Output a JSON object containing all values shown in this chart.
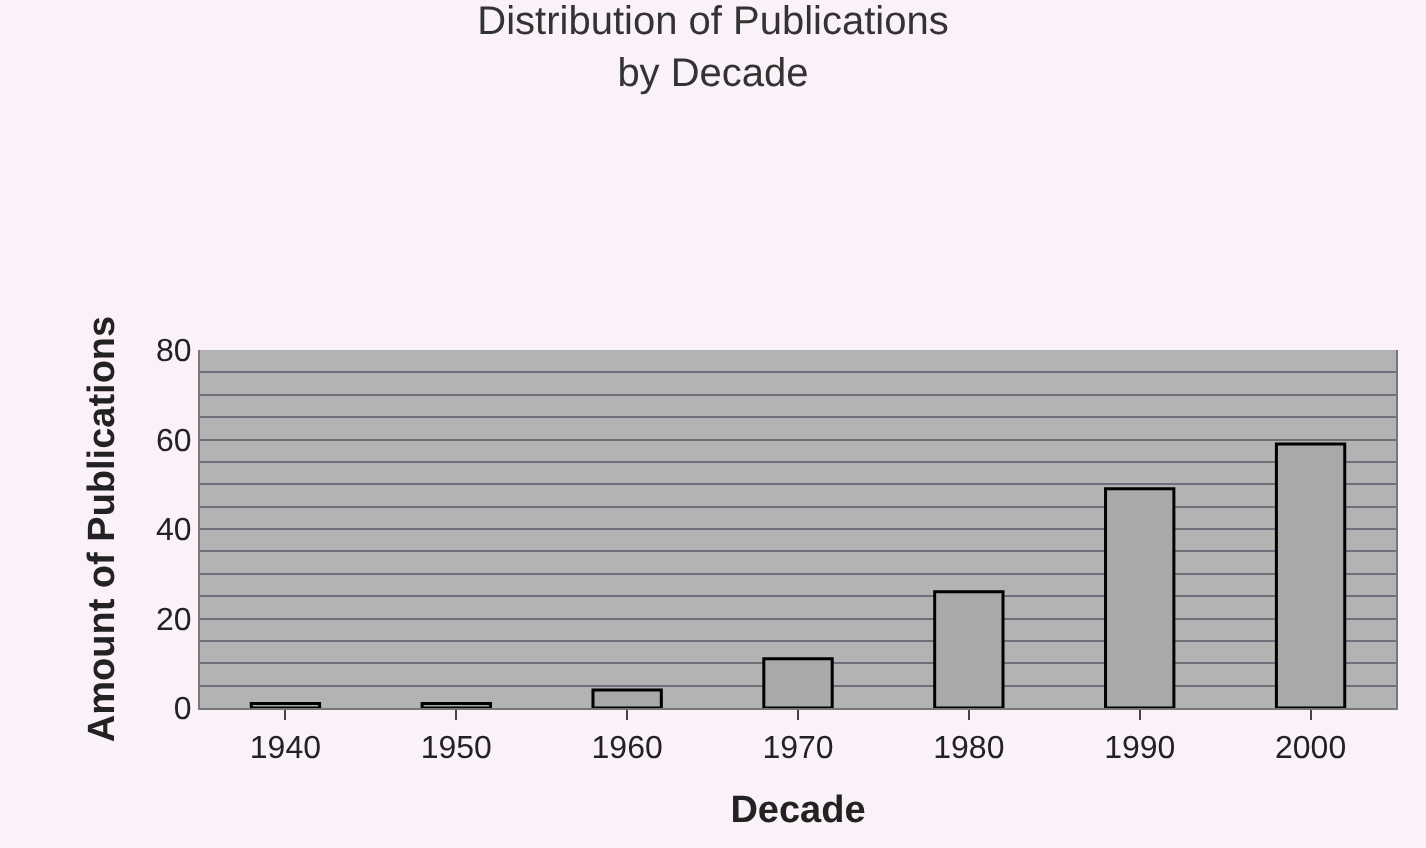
{
  "chart_data": {
    "type": "bar",
    "title": "Distribution of Publications\nby Decade",
    "xlabel": "Decade",
    "ylabel": "Amount of Publications",
    "categories": [
      "1940",
      "1950",
      "1960",
      "1970",
      "1980",
      "1990",
      "2000"
    ],
    "values": [
      1,
      1,
      4,
      11,
      26,
      49,
      59
    ],
    "color": "#a9a9a9",
    "ylim": [
      0,
      80
    ],
    "yticks": [
      0,
      {
        "value": 5,
        "label": null
      },
      {
        "value": 10,
        "label": null
      },
      {
        "value": 15,
        "label": null
      },
      20,
      {
        "value": 25,
        "label": null
      },
      {
        "value": 30,
        "label": null
      },
      {
        "value": 35,
        "label": null
      },
      40,
      {
        "value": 45,
        "label": null
      },
      {
        "value": 50,
        "label": null
      },
      {
        "value": 55,
        "label": null
      },
      60,
      {
        "value": 65,
        "label": null
      },
      {
        "value": 70,
        "label": null
      },
      {
        "value": 75,
        "label": null
      },
      80
    ],
    "grid": "y"
  }
}
